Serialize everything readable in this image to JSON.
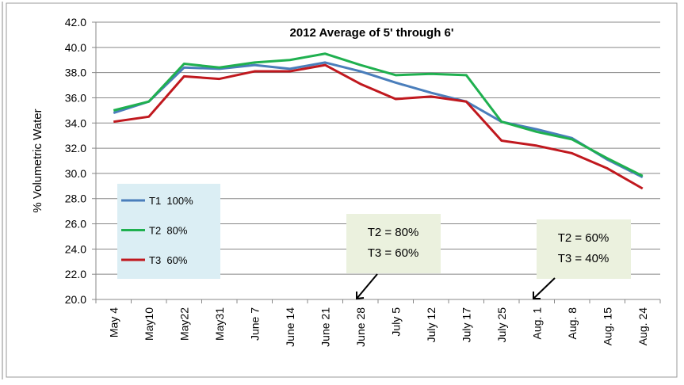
{
  "chart_data": {
    "type": "line",
    "title": "2012  Average of 5' through 6'",
    "y_label": "% Volumetric Water",
    "categories": [
      "May 4",
      "May10",
      "May22",
      "May31",
      "June 7",
      "June 14",
      "June 21",
      "June 28",
      "July 5",
      "July 12",
      "July 17",
      "July 25",
      "Aug. 1",
      "Aug. 8",
      "Aug. 15",
      "Aug. 24"
    ],
    "series": [
      {
        "name": "T1  100%",
        "color": "#4a7ebb",
        "values": [
          34.8,
          35.7,
          38.4,
          38.3,
          38.6,
          38.3,
          38.8,
          38.1,
          37.2,
          36.4,
          35.7,
          34.1,
          33.5,
          32.8,
          31.1,
          29.7
        ]
      },
      {
        "name": "T2  80%",
        "color": "#1fb04f",
        "values": [
          35.0,
          35.7,
          38.7,
          38.4,
          38.8,
          39.0,
          39.5,
          38.6,
          37.8,
          37.9,
          37.8,
          34.1,
          33.3,
          32.7,
          31.2,
          29.8
        ]
      },
      {
        "name": "T3  60%",
        "color": "#c0181e",
        "values": [
          34.1,
          34.5,
          37.7,
          37.5,
          38.1,
          38.1,
          38.6,
          37.1,
          35.9,
          36.1,
          35.7,
          32.6,
          32.2,
          31.6,
          30.4,
          28.8
        ]
      }
    ],
    "ylim": [
      20,
      42
    ],
    "yticks": [
      {
        "value": 20,
        "label": "20.0"
      },
      {
        "value": 22,
        "label": "22.0"
      },
      {
        "value": 24,
        "label": "24.0"
      },
      {
        "value": 26,
        "label": "26.0"
      },
      {
        "value": 28,
        "label": "28.0"
      },
      {
        "value": 30,
        "label": "30.0"
      },
      {
        "value": 32,
        "label": "32.0"
      },
      {
        "value": 34,
        "label": "34.0"
      },
      {
        "value": 36,
        "label": "36.0"
      },
      {
        "value": 38,
        "label": "38.0"
      },
      {
        "value": 40,
        "label": "40.0"
      },
      {
        "value": 42,
        "label": "42.0"
      }
    ],
    "grid": true,
    "annotations": [
      {
        "lines": [
          "T2 = 80%",
          "T3 = 60%"
        ]
      },
      {
        "lines": [
          "T2 = 60%",
          "T3 = 40%"
        ]
      }
    ]
  }
}
